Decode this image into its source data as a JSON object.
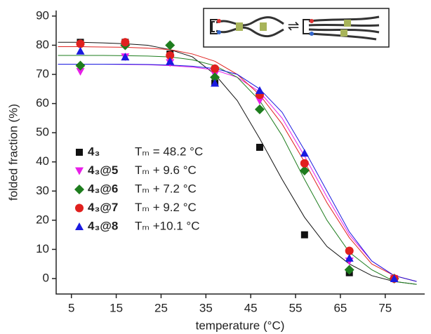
{
  "chart_data": {
    "type": "scatter",
    "xlabel": "temperature (°C)",
    "ylabel": "folded fraction (%)",
    "xlim": [
      1.6,
      83.8
    ],
    "ylim": [
      -5.3,
      91.9
    ],
    "xticks": [
      5,
      15,
      25,
      35,
      45,
      55,
      65,
      75
    ],
    "yticks": [
      0,
      10,
      20,
      30,
      40,
      50,
      60,
      70,
      80,
      90
    ],
    "x": [
      7,
      17,
      27,
      37,
      47,
      57,
      67,
      77
    ],
    "fit_x": [
      2,
      7,
      12,
      17,
      22,
      27,
      32,
      37,
      42,
      47,
      52,
      57,
      62,
      67,
      72,
      77,
      82
    ],
    "series": [
      {
        "name": "4₃",
        "annotation": "Tₘ = 48.2 °C",
        "color": "#111111",
        "marker": "square",
        "values": [
          81,
          81,
          77,
          67,
          45,
          15,
          2,
          0
        ],
        "fit": [
          81,
          81,
          80.8,
          80.5,
          80,
          78.5,
          76,
          70,
          61,
          48,
          34,
          21,
          11,
          5,
          1,
          -1,
          -2
        ]
      },
      {
        "name": "4₃@5",
        "annotation": "Tₘ +  9.6 °C",
        "color": "#e81ee8",
        "marker": "triangle-down",
        "values": [
          71,
          76,
          74,
          70,
          61,
          39,
          6,
          0
        ],
        "fit": [
          73.5,
          73.5,
          73.5,
          73.4,
          73.3,
          73,
          72.5,
          71.5,
          69,
          64,
          55,
          42,
          28,
          15,
          6,
          1,
          -1
        ]
      },
      {
        "name": "4₃@6",
        "annotation": "Tₘ +  7.2 °C",
        "color": "#1e7d1e",
        "marker": "diamond",
        "values": [
          73,
          80,
          80,
          69,
          58,
          37,
          3,
          0
        ],
        "fit": [
          76.5,
          76.5,
          76.5,
          76.4,
          76.3,
          76,
          75,
          73,
          69,
          61,
          49,
          34,
          20,
          9,
          3,
          -1,
          -2
        ]
      },
      {
        "name": "4₃@7",
        "annotation": "Tₘ +  9.2 °C",
        "color": "#e0201e",
        "marker": "circle",
        "values": [
          80.5,
          81,
          76.5,
          72,
          63,
          39.5,
          9.5,
          0
        ],
        "fit": [
          79.5,
          79.5,
          79.4,
          79.3,
          79,
          78.5,
          77,
          74.5,
          70,
          63,
          53,
          40,
          26,
          14,
          5,
          1,
          -1
        ]
      },
      {
        "name": "4₃@8",
        "annotation": "Tₘ +10.1 °C",
        "color": "#1a1ae0",
        "marker": "triangle-up",
        "values": [
          78,
          76,
          74.5,
          67,
          64.5,
          43,
          7,
          0
        ],
        "fit": [
          73.5,
          73.5,
          73.5,
          73.5,
          73.4,
          73.2,
          72.8,
          72,
          70,
          65,
          57,
          44,
          30,
          16,
          6,
          1,
          -1
        ]
      }
    ]
  }
}
